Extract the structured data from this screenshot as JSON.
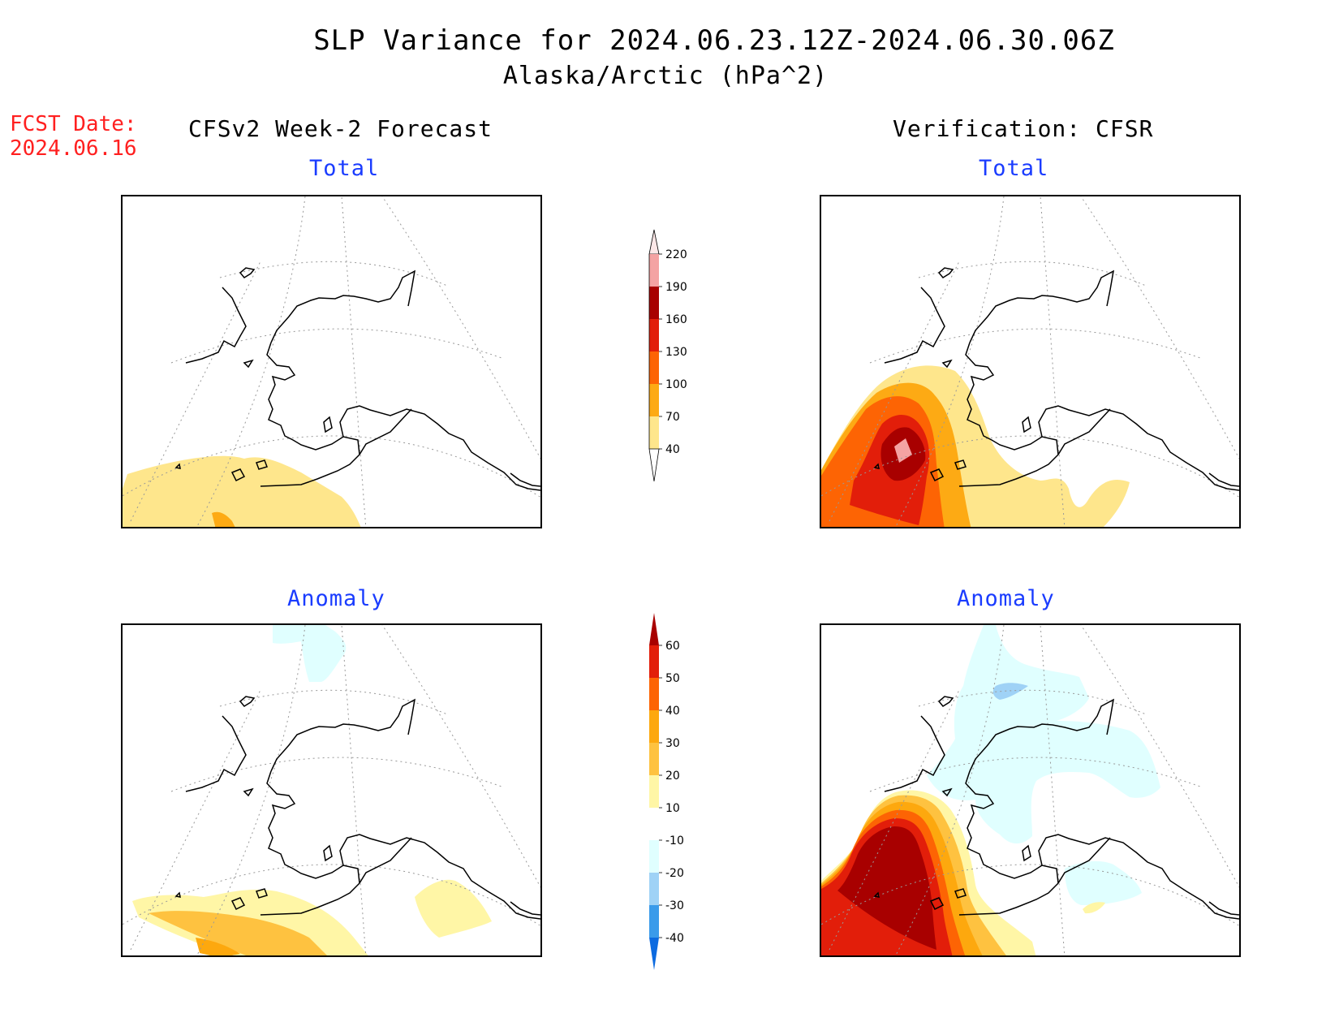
{
  "header": {
    "title": "SLP Variance for 2024.06.23.12Z-2024.06.30.06Z",
    "subtitle": "Alaska/Arctic (hPa^2)"
  },
  "forecast_date": {
    "label": "FCST Date:",
    "value": "2024.06.16"
  },
  "columns": {
    "left": "CFSv2 Week-2 Forecast",
    "right": "Verification: CFSR"
  },
  "panels": {
    "forecast_total": {
      "title": "Total"
    },
    "verification_total": {
      "title": "Total"
    },
    "forecast_anomaly": {
      "title": "Anomaly"
    },
    "verification_anomaly": {
      "title": "Anomaly"
    }
  },
  "colorbars": {
    "total": {
      "levels": [
        "40",
        "70",
        "100",
        "130",
        "160",
        "190",
        "220"
      ],
      "colors": [
        "#fee68c",
        "#fdaa14",
        "#fd6404",
        "#e21e0a",
        "#a80000",
        "#f4a3a3",
        "#fde8e8"
      ]
    },
    "anomaly": {
      "levels": [
        "60",
        "50",
        "40",
        "30",
        "20",
        "10",
        "-10",
        "-20",
        "-30",
        "-40"
      ],
      "colors": [
        "#a80000",
        "#e21e0a",
        "#fd6404",
        "#fda80e",
        "#fec240",
        "#fff6a6",
        "#ffffff",
        "#e0ffff",
        "#9fd2f6",
        "#3a9bea",
        "#0d6be0"
      ]
    }
  },
  "colors": {
    "title_text": "#000000",
    "forecast_date_text": "#ff2020",
    "panel_title_text": "#1a3cff"
  }
}
